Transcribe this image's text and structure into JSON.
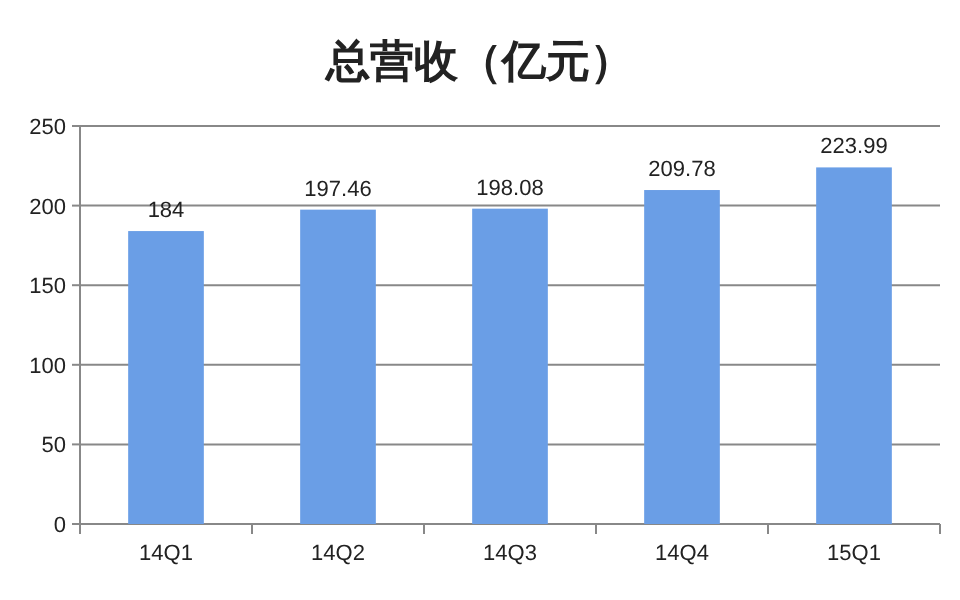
{
  "chart_data": {
    "type": "bar",
    "title": "总营收（亿元）",
    "categories": [
      "14Q1",
      "14Q2",
      "14Q3",
      "14Q4",
      "15Q1"
    ],
    "values": [
      184,
      197.46,
      198.08,
      209.78,
      223.99
    ],
    "color": "#6a9ee6",
    "ylim": [
      0,
      250
    ],
    "yticks": [
      0,
      50,
      100,
      150,
      200,
      250
    ],
    "grid": "y",
    "data_labels": true
  }
}
